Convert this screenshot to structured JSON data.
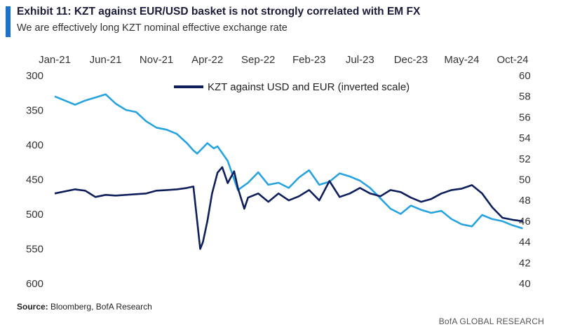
{
  "header": {
    "title": "Exhibit 11: KZT against EUR/USD basket is not strongly correlated with EM FX",
    "subtitle": "We are effectively long KZT nominal effective exchange rate"
  },
  "footer": {
    "source_label": "Source:",
    "source_text": "Bloomberg, BofA Research",
    "brand": "BofA GLOBAL RESEARCH"
  },
  "colors": {
    "accent": "#1a73c9",
    "kzt_series": "#0e1f5c",
    "em_series": "#27a3e0"
  },
  "chart_data": {
    "type": "line",
    "title": "",
    "xlabel": "",
    "x_tick_labels": [
      "Jan-21",
      "Jun-21",
      "Nov-21",
      "Apr-22",
      "Sep-22",
      "Feb-23",
      "Jul-23",
      "Dec-23",
      "May-24",
      "Oct-24"
    ],
    "x_range": [
      "2021-01",
      "2024-10"
    ],
    "left_axis": {
      "ticks": [
        300,
        350,
        400,
        450,
        500,
        550,
        600
      ],
      "ylim": [
        600,
        300
      ],
      "inverted": true
    },
    "right_axis": {
      "ticks": [
        40,
        42,
        44,
        46,
        48,
        50,
        52,
        54,
        56,
        58,
        60
      ],
      "ylim": [
        40,
        60
      ]
    },
    "legend": {
      "position": "top-center"
    },
    "grid": false,
    "series": [
      {
        "name": "KZT against USD and EUR (inverted scale)",
        "axis": "left",
        "color": "#0e1f5c",
        "points": [
          [
            "2021-01",
            470
          ],
          [
            "2021-02",
            467
          ],
          [
            "2021-03",
            464
          ],
          [
            "2021-04",
            466
          ],
          [
            "2021-05",
            475
          ],
          [
            "2021-06",
            472
          ],
          [
            "2021-07",
            473
          ],
          [
            "2021-08",
            472
          ],
          [
            "2021-09",
            471
          ],
          [
            "2021-10",
            470
          ],
          [
            "2021-11",
            466
          ],
          [
            "2021-12",
            465
          ],
          [
            "2022-01",
            464
          ],
          [
            "2022-02",
            462
          ],
          [
            "2022-02-20",
            460
          ],
          [
            "2022-03-01",
            510
          ],
          [
            "2022-03-10",
            550
          ],
          [
            "2022-03-18",
            540
          ],
          [
            "2022-04",
            510
          ],
          [
            "2022-04-15",
            470
          ],
          [
            "2022-05",
            440
          ],
          [
            "2022-05-15",
            432
          ],
          [
            "2022-06",
            455
          ],
          [
            "2022-06-20",
            438
          ],
          [
            "2022-07",
            462
          ],
          [
            "2022-07-20",
            492
          ],
          [
            "2022-08",
            476
          ],
          [
            "2022-09",
            470
          ],
          [
            "2022-10",
            482
          ],
          [
            "2022-11",
            470
          ],
          [
            "2022-12",
            480
          ],
          [
            "2023-01",
            474
          ],
          [
            "2023-02",
            465
          ],
          [
            "2023-03",
            480
          ],
          [
            "2023-04",
            452
          ],
          [
            "2023-05",
            475
          ],
          [
            "2023-06",
            470
          ],
          [
            "2023-07",
            462
          ],
          [
            "2023-08",
            470
          ],
          [
            "2023-09",
            474
          ],
          [
            "2023-10",
            465
          ],
          [
            "2023-11",
            468
          ],
          [
            "2023-12",
            476
          ],
          [
            "2024-01",
            482
          ],
          [
            "2024-02",
            478
          ],
          [
            "2024-03",
            470
          ],
          [
            "2024-04",
            465
          ],
          [
            "2024-05",
            463
          ],
          [
            "2024-06",
            458
          ],
          [
            "2024-07",
            470
          ],
          [
            "2024-08",
            490
          ],
          [
            "2024-09",
            505
          ],
          [
            "2024-10",
            508
          ],
          [
            "2024-11",
            510
          ]
        ]
      },
      {
        "name": "",
        "axis": "right",
        "color": "#27a3e0",
        "points": [
          [
            "2021-01",
            58.0
          ],
          [
            "2021-02",
            57.6
          ],
          [
            "2021-03",
            57.2
          ],
          [
            "2021-04",
            57.6
          ],
          [
            "2021-05",
            57.9
          ],
          [
            "2021-06",
            58.2
          ],
          [
            "2021-07",
            57.3
          ],
          [
            "2021-08",
            56.7
          ],
          [
            "2021-09",
            56.5
          ],
          [
            "2021-10",
            55.6
          ],
          [
            "2021-11",
            55.0
          ],
          [
            "2021-12",
            54.8
          ],
          [
            "2022-01",
            54.4
          ],
          [
            "2022-02",
            53.5
          ],
          [
            "2022-02-20",
            52.8
          ],
          [
            "2022-03",
            52.5
          ],
          [
            "2022-04",
            53.5
          ],
          [
            "2022-04-20",
            53.0
          ],
          [
            "2022-05",
            53.2
          ],
          [
            "2022-06",
            51.8
          ],
          [
            "2022-06-15",
            50.5
          ],
          [
            "2022-07",
            49.0
          ],
          [
            "2022-08",
            49.7
          ],
          [
            "2022-09",
            50.7
          ],
          [
            "2022-10",
            49.5
          ],
          [
            "2022-11",
            49.7
          ],
          [
            "2022-12",
            49.2
          ],
          [
            "2023-01",
            50.2
          ],
          [
            "2023-02",
            50.9
          ],
          [
            "2023-03",
            49.5
          ],
          [
            "2023-04",
            49.8
          ],
          [
            "2023-05",
            50.6
          ],
          [
            "2023-06",
            50.3
          ],
          [
            "2023-07",
            49.9
          ],
          [
            "2023-08",
            49.2
          ],
          [
            "2023-09",
            48.2
          ],
          [
            "2023-10",
            47.2
          ],
          [
            "2023-11",
            46.7
          ],
          [
            "2023-12",
            47.5
          ],
          [
            "2024-01",
            47.1
          ],
          [
            "2024-02",
            46.8
          ],
          [
            "2024-03",
            47.0
          ],
          [
            "2024-04",
            46.2
          ],
          [
            "2024-05",
            45.7
          ],
          [
            "2024-06",
            45.5
          ],
          [
            "2024-07",
            46.6
          ],
          [
            "2024-08",
            46.2
          ],
          [
            "2024-09",
            46.0
          ],
          [
            "2024-10",
            45.6
          ],
          [
            "2024-11",
            45.3
          ]
        ]
      }
    ]
  }
}
